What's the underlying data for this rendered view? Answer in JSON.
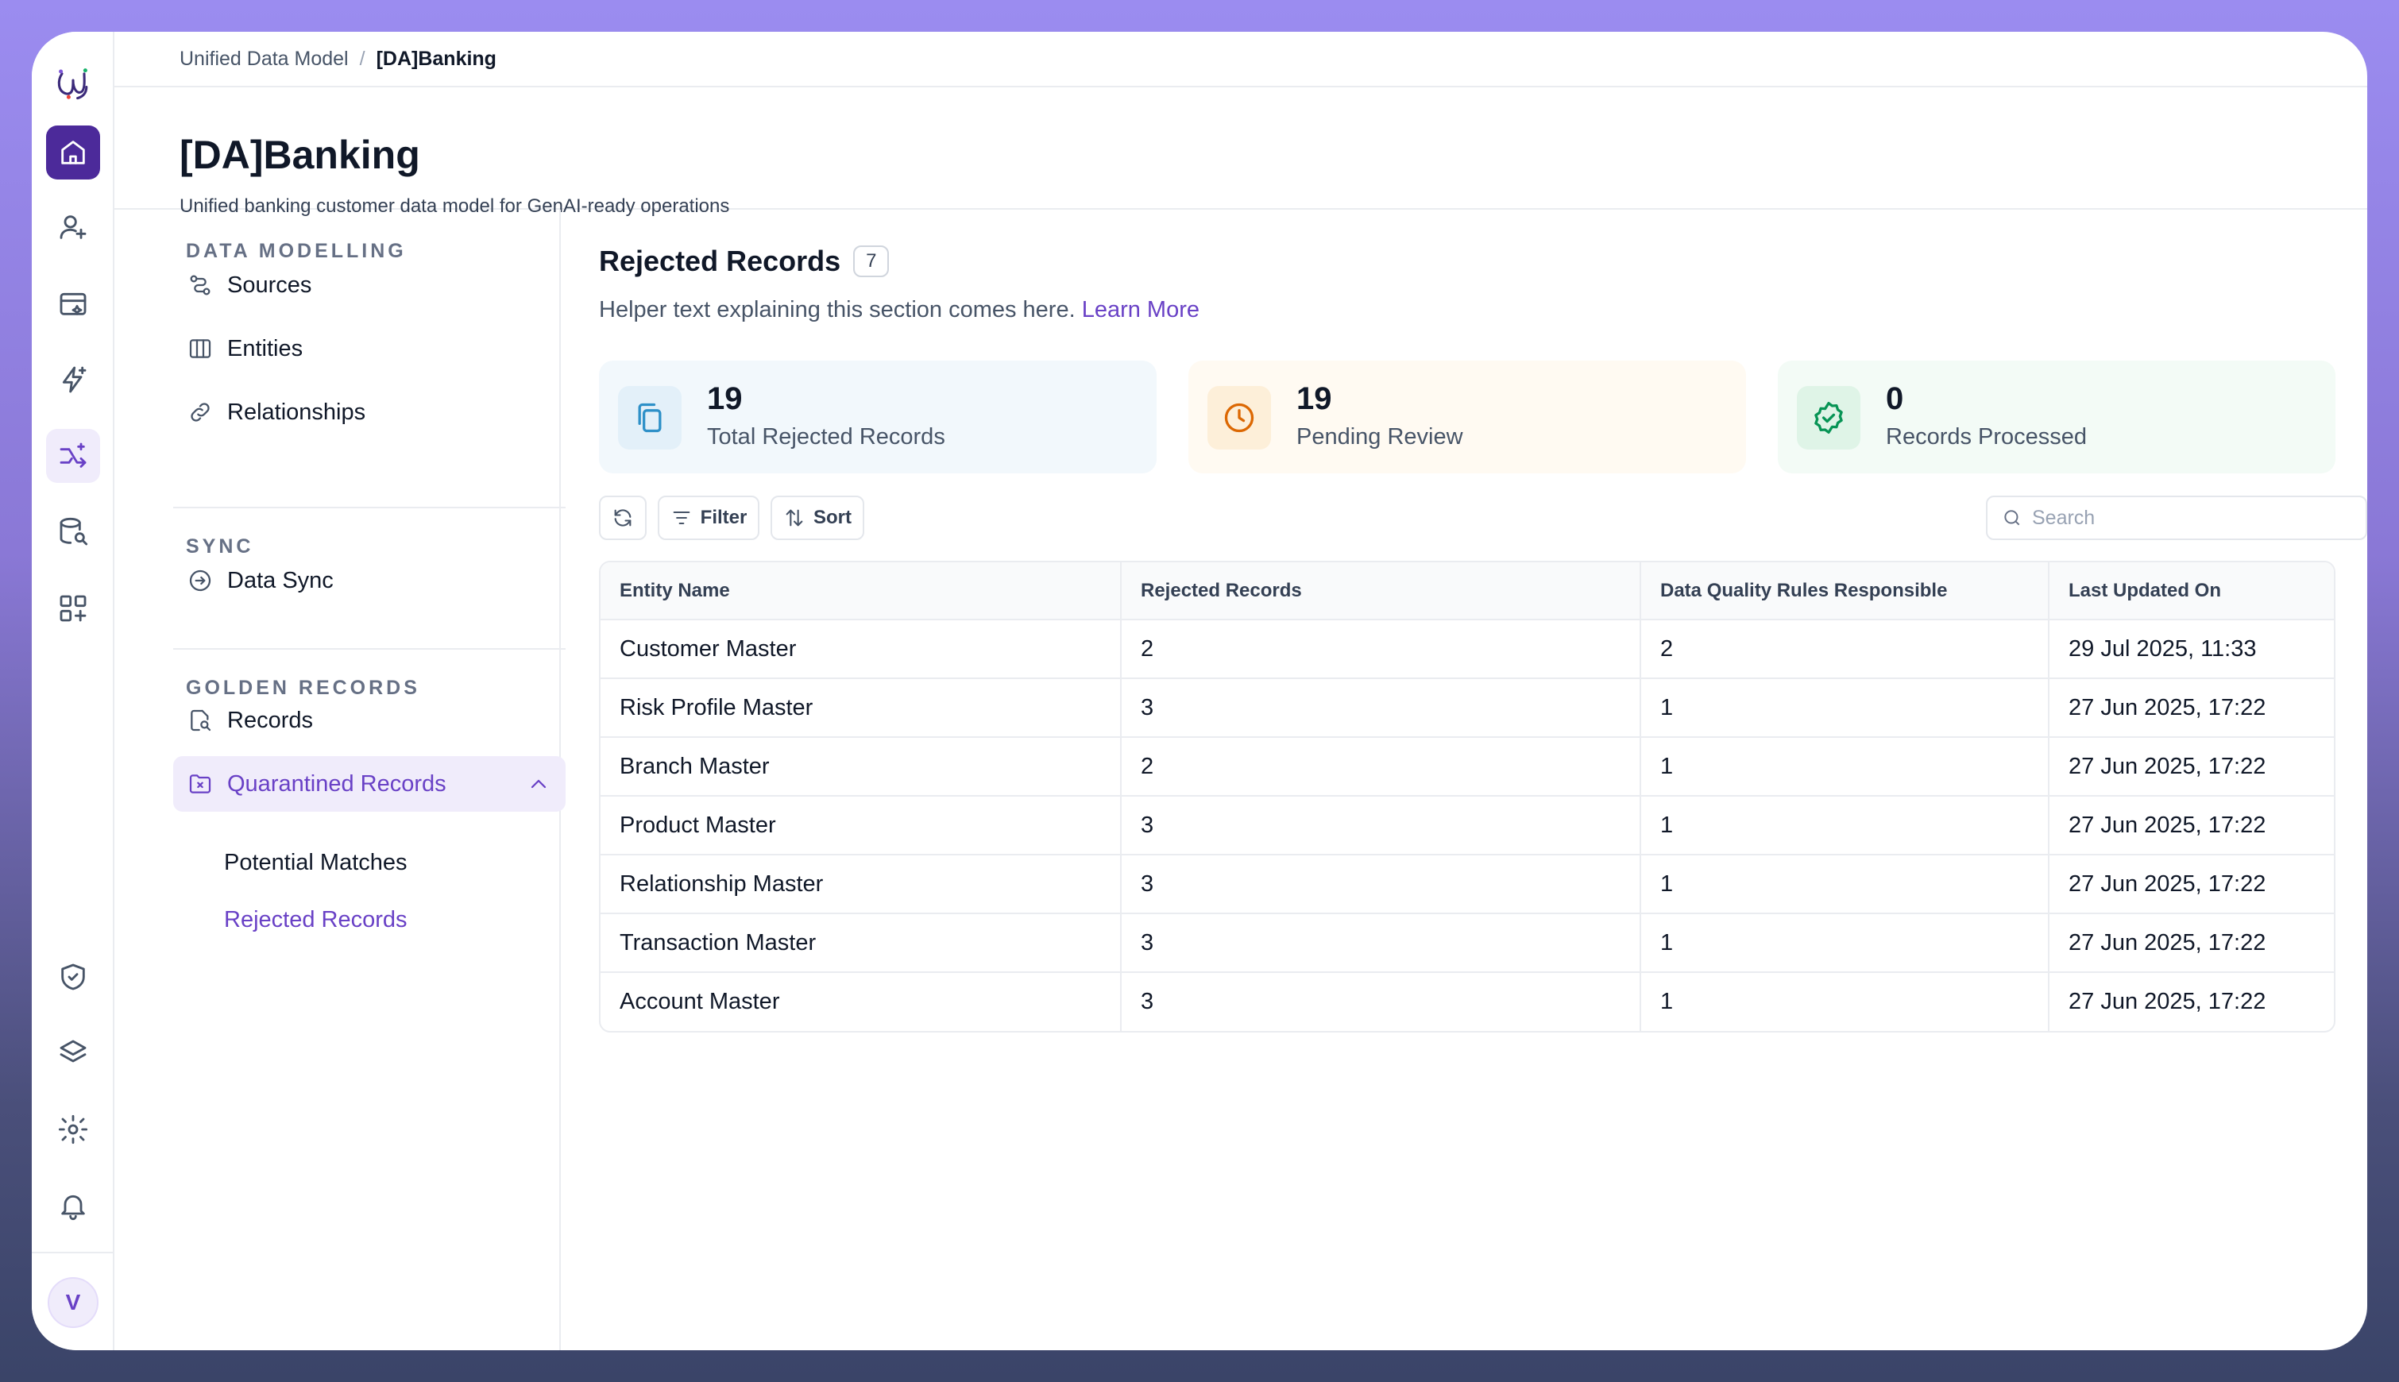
{
  "breadcrumb": {
    "root": "Unified Data Model",
    "separator": "/",
    "current": "[DA]Banking"
  },
  "page": {
    "title": "[DA]Banking",
    "subtitle": "Unified banking customer data model for GenAI-ready operations"
  },
  "rail": {
    "items": [
      "home-icon",
      "user-sparkle-icon",
      "calendar-sparkle-icon",
      "lightning-sparkle-icon",
      "flow-sparkle-icon",
      "database-search-icon",
      "grid-add-icon",
      "shield-check-icon",
      "layers-icon",
      "gear-icon",
      "bell-icon"
    ],
    "avatar_initial": "V"
  },
  "sidebar": {
    "sections": [
      {
        "title": "DATA MODELLING",
        "items": [
          "Sources",
          "Entities",
          "Relationships"
        ]
      },
      {
        "title": "SYNC",
        "items": [
          "Data Sync"
        ]
      },
      {
        "title": "GOLDEN RECORDS",
        "items": [
          "Records",
          "Quarantined Records"
        ]
      }
    ],
    "sub_items": [
      "Potential Matches",
      "Rejected Records"
    ],
    "active_item": "Quarantined Records",
    "active_sub_item": "Rejected Records"
  },
  "section": {
    "title": "Rejected Records",
    "count": "7",
    "helper": "Helper text explaining this section comes here.",
    "learn_more": "Learn More"
  },
  "stats": [
    {
      "value": "19",
      "label": "Total Rejected Records",
      "color": "#2e90c8",
      "bg": "#f2f8fc",
      "icon": "copy-icon"
    },
    {
      "value": "19",
      "label": "Pending Review",
      "color": "#dc6803",
      "bg": "#fffaf2",
      "icon": "clock-icon"
    },
    {
      "value": "0",
      "label": "Records Processed",
      "color": "#079455",
      "bg": "#f3fbf6",
      "icon": "badge-check-icon"
    }
  ],
  "toolbar": {
    "filter": "Filter",
    "sort": "Sort",
    "search_placeholder": "Search"
  },
  "table": {
    "columns": [
      "Entity Name",
      "Rejected Records",
      "Data Quality Rules Responsible",
      "Last Updated On"
    ],
    "rows": [
      [
        "Customer Master",
        "2",
        "2",
        "29 Jul 2025, 11:33"
      ],
      [
        "Risk Profile Master",
        "3",
        "1",
        "27 Jun 2025, 17:22"
      ],
      [
        "Branch Master",
        "2",
        "1",
        "27 Jun 2025, 17:22"
      ],
      [
        "Product Master",
        "3",
        "1",
        "27 Jun 2025, 17:22"
      ],
      [
        "Relationship Master",
        "3",
        "1",
        "27 Jun 2025, 17:22"
      ],
      [
        "Transaction Master",
        "3",
        "1",
        "27 Jun 2025, 17:22"
      ],
      [
        "Account Master",
        "3",
        "1",
        "27 Jun 2025, 17:22"
      ]
    ]
  },
  "colors": {
    "accent": "#6941c6",
    "brand_dark": "#4c2a9a"
  }
}
